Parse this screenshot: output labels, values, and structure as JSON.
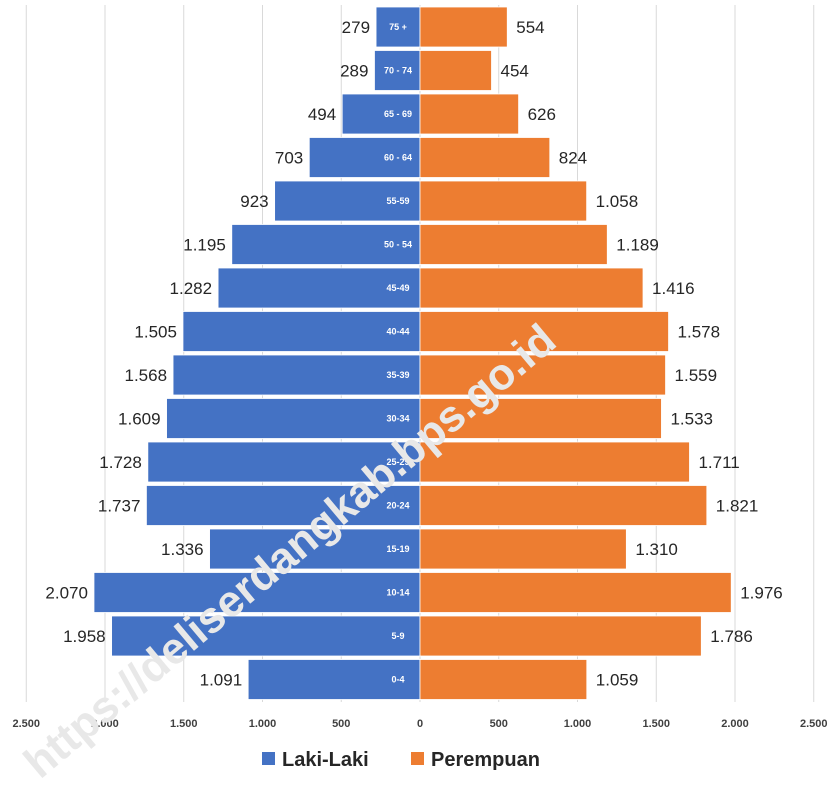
{
  "chart_data": {
    "type": "bar",
    "orientation": "horizontal-population-pyramid",
    "categories": [
      "75 +",
      "70 - 74",
      "65 - 69",
      "60 - 64",
      "55-59",
      "50 - 54",
      "45-49",
      "40-44",
      "35-39",
      "30-34",
      "25-29",
      "20-24",
      "15-19",
      "10-14",
      "5-9",
      "0-4"
    ],
    "series": [
      {
        "name": "Laki-Laki",
        "color": "#4472c4",
        "values": [
          279,
          289,
          494,
          703,
          923,
          1195,
          1282,
          1505,
          1568,
          1609,
          1728,
          1737,
          1336,
          2070,
          1958,
          1091
        ],
        "labels": [
          "279",
          "289",
          "494",
          "703",
          "923",
          "1.195",
          "1.282",
          "1.505",
          "1.568",
          "1.609",
          "1.728",
          "1.737",
          "1.336",
          "2.070",
          "1.958",
          "1.091"
        ]
      },
      {
        "name": "Perempuan",
        "color": "#ed7d31",
        "values": [
          554,
          454,
          626,
          824,
          1058,
          1189,
          1416,
          1578,
          1559,
          1533,
          1711,
          1821,
          1310,
          1976,
          1786,
          1059
        ],
        "labels": [
          "554",
          "454",
          "626",
          "824",
          "1.058",
          "1.189",
          "1.416",
          "1.578",
          "1.559",
          "1.533",
          "1.711",
          "1.821",
          "1.310",
          "1.976",
          "1.786",
          "1.059"
        ]
      }
    ],
    "xlim": [
      -2500,
      2500
    ],
    "x_ticks": [
      -2500,
      -2000,
      -1500,
      -1000,
      -500,
      0,
      500,
      1000,
      1500,
      2000,
      2500
    ],
    "x_tick_labels": [
      "2.500",
      "2.000",
      "1.500",
      "1.000",
      "500",
      "0",
      "500",
      "1.000",
      "1.500",
      "2.000",
      "2.500"
    ],
    "grid": true,
    "legend_position": "bottom"
  },
  "watermark": "https://deliserdangkab.bps.go.id"
}
